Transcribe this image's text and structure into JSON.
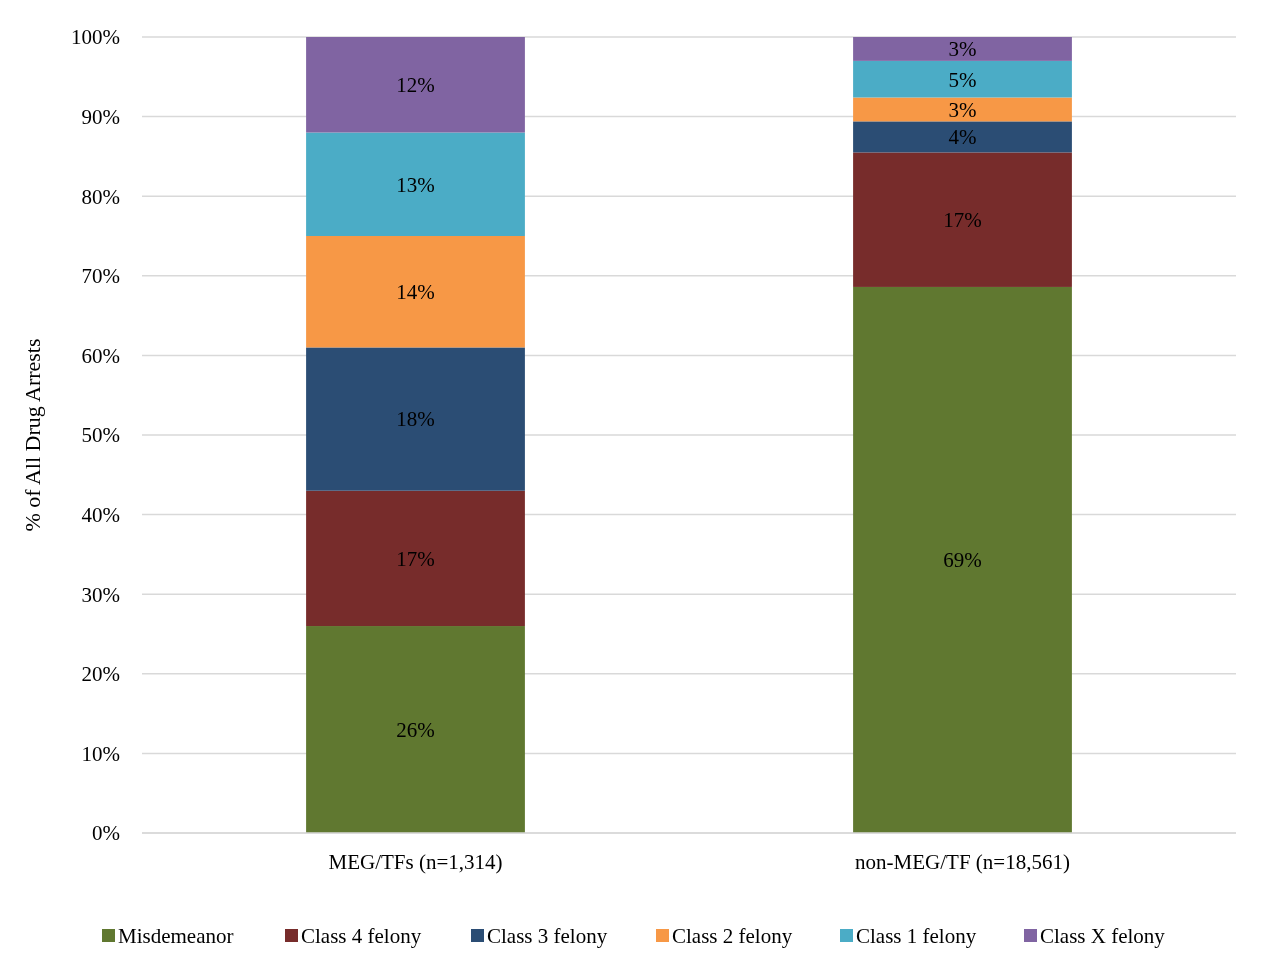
{
  "chart_data": {
    "type": "bar",
    "stacked": true,
    "ylabel": "% of All Drug Arrests",
    "categories": [
      "MEG/TFs (n=1,314)",
      "non-MEG/TF (n=18,561)"
    ],
    "series": [
      {
        "name": "Misdemeanor",
        "color": "#607830",
        "values": [
          26,
          68.6
        ],
        "value_labels": [
          "26%",
          "69%"
        ]
      },
      {
        "name": "Class 4 felony",
        "color": "#772c2b",
        "values": [
          17,
          16.9
        ],
        "value_labels": [
          "17%",
          "17%"
        ]
      },
      {
        "name": "Class 3 felony",
        "color": "#2b4d74",
        "values": [
          18,
          3.9
        ],
        "value_labels": [
          "18%",
          "4%"
        ]
      },
      {
        "name": "Class 2 felony",
        "color": "#f79846",
        "values": [
          14,
          3.0
        ],
        "value_labels": [
          "14%",
          "3%"
        ]
      },
      {
        "name": "Class 1 felony",
        "color": "#4bacc6",
        "values": [
          13,
          4.6
        ],
        "value_labels": [
          "13%",
          "5%"
        ]
      },
      {
        "name": "Class X felony",
        "color": "#8064a2",
        "values": [
          12,
          3.0
        ],
        "value_labels": [
          "12%",
          "3%"
        ]
      }
    ],
    "ylim": [
      0,
      100
    ],
    "yticks": [
      {
        "value": 0,
        "label": "0%"
      },
      {
        "value": 10,
        "label": "10%"
      },
      {
        "value": 20,
        "label": "20%"
      },
      {
        "value": 30,
        "label": "30%"
      },
      {
        "value": 40,
        "label": "40%"
      },
      {
        "value": 50,
        "label": "50%"
      },
      {
        "value": 60,
        "label": "60%"
      },
      {
        "value": 70,
        "label": "70%"
      },
      {
        "value": 80,
        "label": "80%"
      },
      {
        "value": 90,
        "label": "90%"
      },
      {
        "value": 100,
        "label": "100%"
      }
    ],
    "grid": "y",
    "legend": "bottom"
  }
}
